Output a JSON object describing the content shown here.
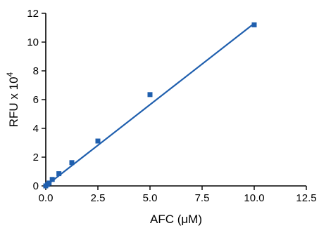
{
  "chart_data": {
    "type": "scatter",
    "title": "",
    "xlabel": "AFC (μM)",
    "ylabel": "RFU x 10",
    "ylabel_superscript": "4",
    "xlim": [
      0,
      12.5
    ],
    "ylim": [
      0,
      12
    ],
    "xticks": [
      0.0,
      2.5,
      5.0,
      7.5,
      10.0,
      12.5
    ],
    "xtick_labels": [
      "0.0",
      "2.5",
      "5.0",
      "7.5",
      "10.0",
      "12.5"
    ],
    "yticks": [
      0,
      2,
      4,
      6,
      8,
      10,
      12
    ],
    "ytick_labels": [
      "0",
      "2",
      "4",
      "6",
      "8",
      "10",
      "12"
    ],
    "grid": false,
    "series": [
      {
        "color": "#1f5fae",
        "marker": "square",
        "x": [
          0,
          0.08,
          0.16,
          0.31,
          0.63,
          1.25,
          2.5,
          5.0,
          10.0
        ],
        "y": [
          0.0,
          0.1,
          0.2,
          0.45,
          0.85,
          1.62,
          3.12,
          6.35,
          11.2
        ]
      }
    ],
    "fit_line": {
      "color": "#1f5fae",
      "x": [
        0,
        10.0
      ],
      "y": [
        0.0,
        11.3
      ]
    }
  }
}
